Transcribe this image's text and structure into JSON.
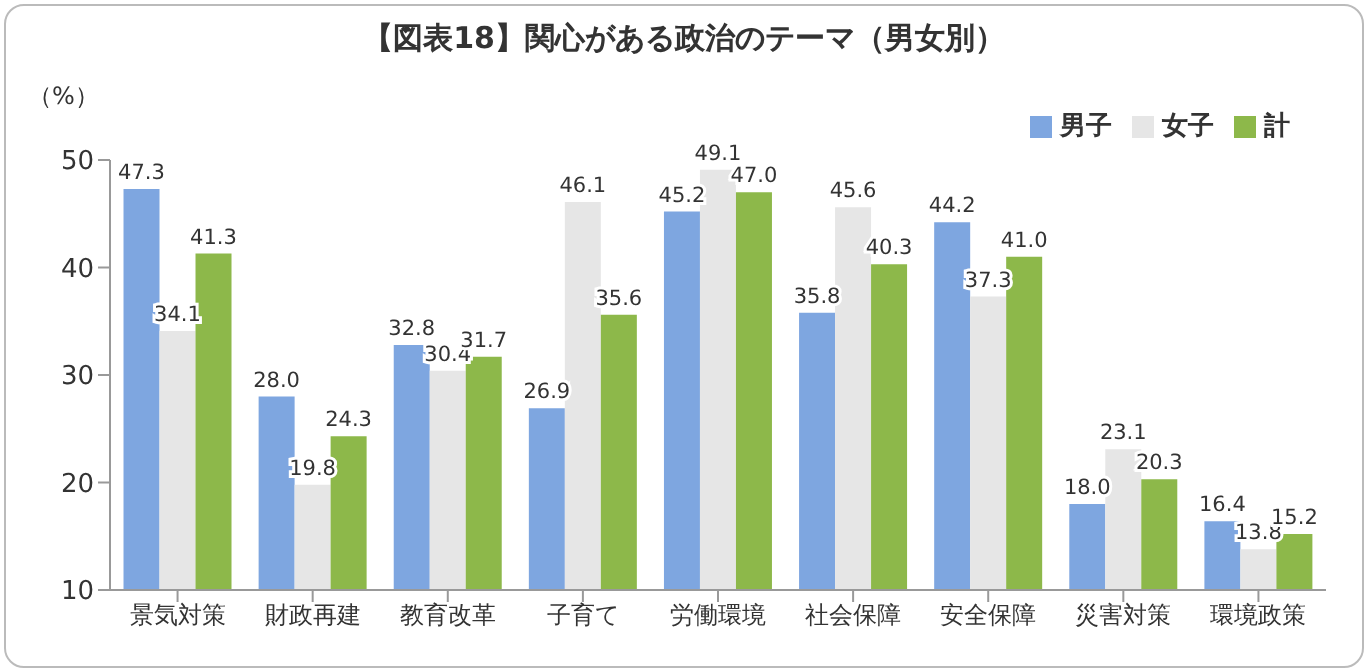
{
  "chart_data": {
    "type": "bar",
    "title": "【図表18】関心がある政治のテーマ（男女別）",
    "ylabel": "（%）",
    "categories": [
      "景気対策",
      "財政再建",
      "教育改革",
      "子育て",
      "労働環境",
      "社会保障",
      "安全保障",
      "災害対策",
      "環境政策"
    ],
    "series": [
      {
        "name": "男子",
        "color": "#7ea6e0",
        "values": [
          47.3,
          28.0,
          32.8,
          26.9,
          45.2,
          35.8,
          44.2,
          18.0,
          16.4
        ],
        "value_labels": [
          "47.3",
          "28.0",
          "32.8",
          "26.9",
          "45.2",
          "35.8",
          "44.2",
          "18.0",
          "16.4"
        ]
      },
      {
        "name": "女子",
        "color": "#e6e6e6",
        "values": [
          34.1,
          19.8,
          30.4,
          46.1,
          49.1,
          45.6,
          37.3,
          23.1,
          13.8
        ],
        "value_labels": [
          "34.1",
          "19.8",
          "30.4",
          "46.1",
          "49.1",
          "45.6",
          "37.3",
          "23.1",
          "13.8"
        ]
      },
      {
        "name": "計",
        "color": "#8db84a",
        "values": [
          41.3,
          24.3,
          31.7,
          35.6,
          47.0,
          40.3,
          41.0,
          20.3,
          15.2
        ],
        "value_labels": [
          "41.3",
          "24.3",
          "31.7",
          "35.6",
          "47.0",
          "40.3",
          "41.0",
          "20.3",
          "15.2"
        ]
      }
    ],
    "ylim": [
      10,
      50
    ],
    "yticks": [
      10,
      20,
      30,
      40,
      50
    ],
    "grid": false,
    "legend": "top right"
  }
}
